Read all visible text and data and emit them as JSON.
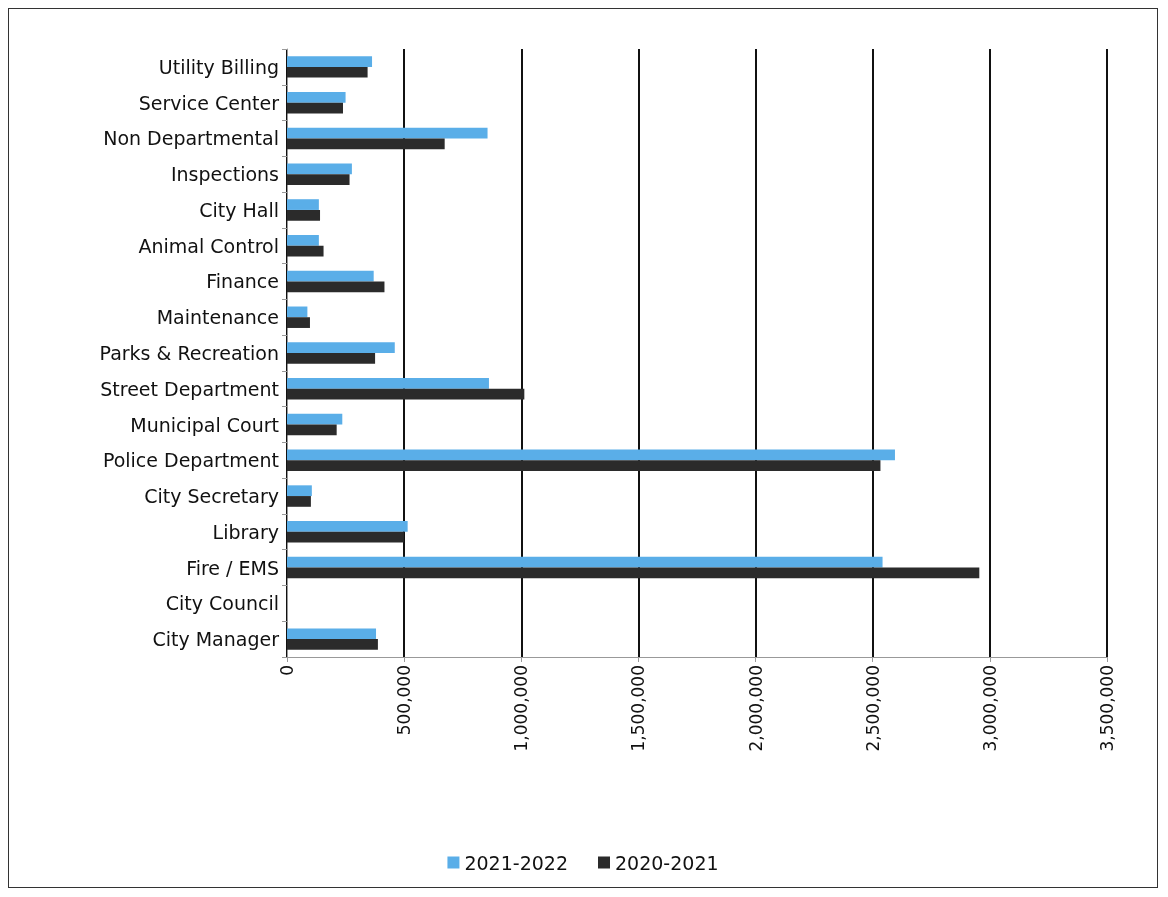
{
  "chart_data": {
    "type": "bar",
    "orientation": "horizontal",
    "categories": [
      "Utility Billing",
      "Service Center",
      "Non Departmental",
      "Inspections",
      "City Hall",
      "Animal Control",
      "Finance",
      "Maintenance",
      "Parks & Recreation",
      "Street Department",
      "Municipal Court",
      "Police Department",
      "City Secretary",
      "Library",
      "Fire / EMS",
      "City Council",
      "City Manager"
    ],
    "series": [
      {
        "name": "2021-2022",
        "color": "#5aaee8",
        "values": [
          363000,
          250000,
          856000,
          277000,
          136000,
          136000,
          370000,
          87000,
          460000,
          862000,
          236000,
          2595000,
          106000,
          515000,
          2542000,
          0,
          380000
        ]
      },
      {
        "name": "2020-2021",
        "color": "#2b2b2b",
        "values": [
          344000,
          239000,
          673000,
          267000,
          141000,
          156000,
          416000,
          98000,
          376000,
          1013000,
          212000,
          2533000,
          102000,
          499000,
          2955000,
          0,
          388000
        ]
      }
    ],
    "xlim": [
      0,
      3500000
    ],
    "xticks": [
      0,
      {
        "value": 500000,
        "label": "500,000"
      },
      {
        "value": 1000000,
        "label": "1,000,000"
      },
      {
        "value": 1500000,
        "label": "1,500,000"
      },
      {
        "value": 2000000,
        "label": "2,000,000"
      },
      {
        "value": 2500000,
        "label": "2,500,000"
      },
      {
        "value": 3000000,
        "label": "3,000,000"
      },
      {
        "value": 3500000,
        "label": "3,500,000"
      }
    ],
    "grid": "x",
    "legend": "bottom"
  }
}
